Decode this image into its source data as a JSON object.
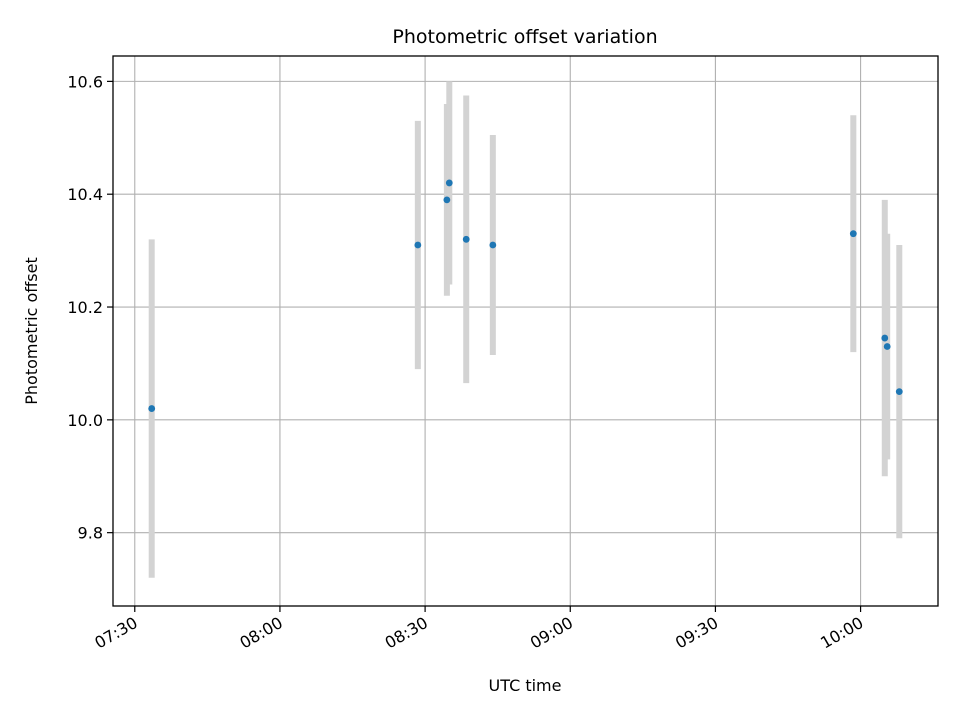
{
  "chart_data": {
    "type": "scatter",
    "title": "Photometric offset variation",
    "xlabel": "UTC time",
    "ylabel": "Photometric offset",
    "x_ticks": [
      "07:30",
      "08:00",
      "08:30",
      "09:00",
      "09:30",
      "10:00"
    ],
    "x_tick_values": [
      "07:30",
      "08:00",
      "08:30",
      "09:00",
      "09:30",
      "10:00"
    ],
    "y_ticks": [
      "9.8",
      "10.0",
      "10.2",
      "10.4",
      "10.6"
    ],
    "y_tick_values": [
      9.8,
      10.0,
      10.2,
      10.4,
      10.6
    ],
    "xlim": [
      "07:25:30",
      "10:16:00"
    ],
    "ylim": [
      9.67,
      10.645
    ],
    "grid": true,
    "colors": {
      "points": "#1f77b4",
      "errorbars": "#d3d3d3",
      "grid": "#b0b0b0"
    },
    "points": [
      {
        "x": "07:33:30",
        "y": 10.02,
        "yerr": 0.3
      },
      {
        "x": "08:28:30",
        "y": 10.31,
        "yerr": 0.22
      },
      {
        "x": "08:34:30",
        "y": 10.39,
        "yerr": 0.17
      },
      {
        "x": "08:35:00",
        "y": 10.42,
        "yerr": 0.18
      },
      {
        "x": "08:38:30",
        "y": 10.32,
        "yerr": 0.255
      },
      {
        "x": "08:44:00",
        "y": 10.31,
        "yerr": 0.195
      },
      {
        "x": "09:58:30",
        "y": 10.33,
        "yerr": 0.21
      },
      {
        "x": "10:05:00",
        "y": 10.145,
        "yerr": 0.245
      },
      {
        "x": "10:05:30",
        "y": 10.13,
        "yerr": 0.2
      },
      {
        "x": "10:08:00",
        "y": 10.05,
        "yerr": 0.26
      }
    ]
  }
}
